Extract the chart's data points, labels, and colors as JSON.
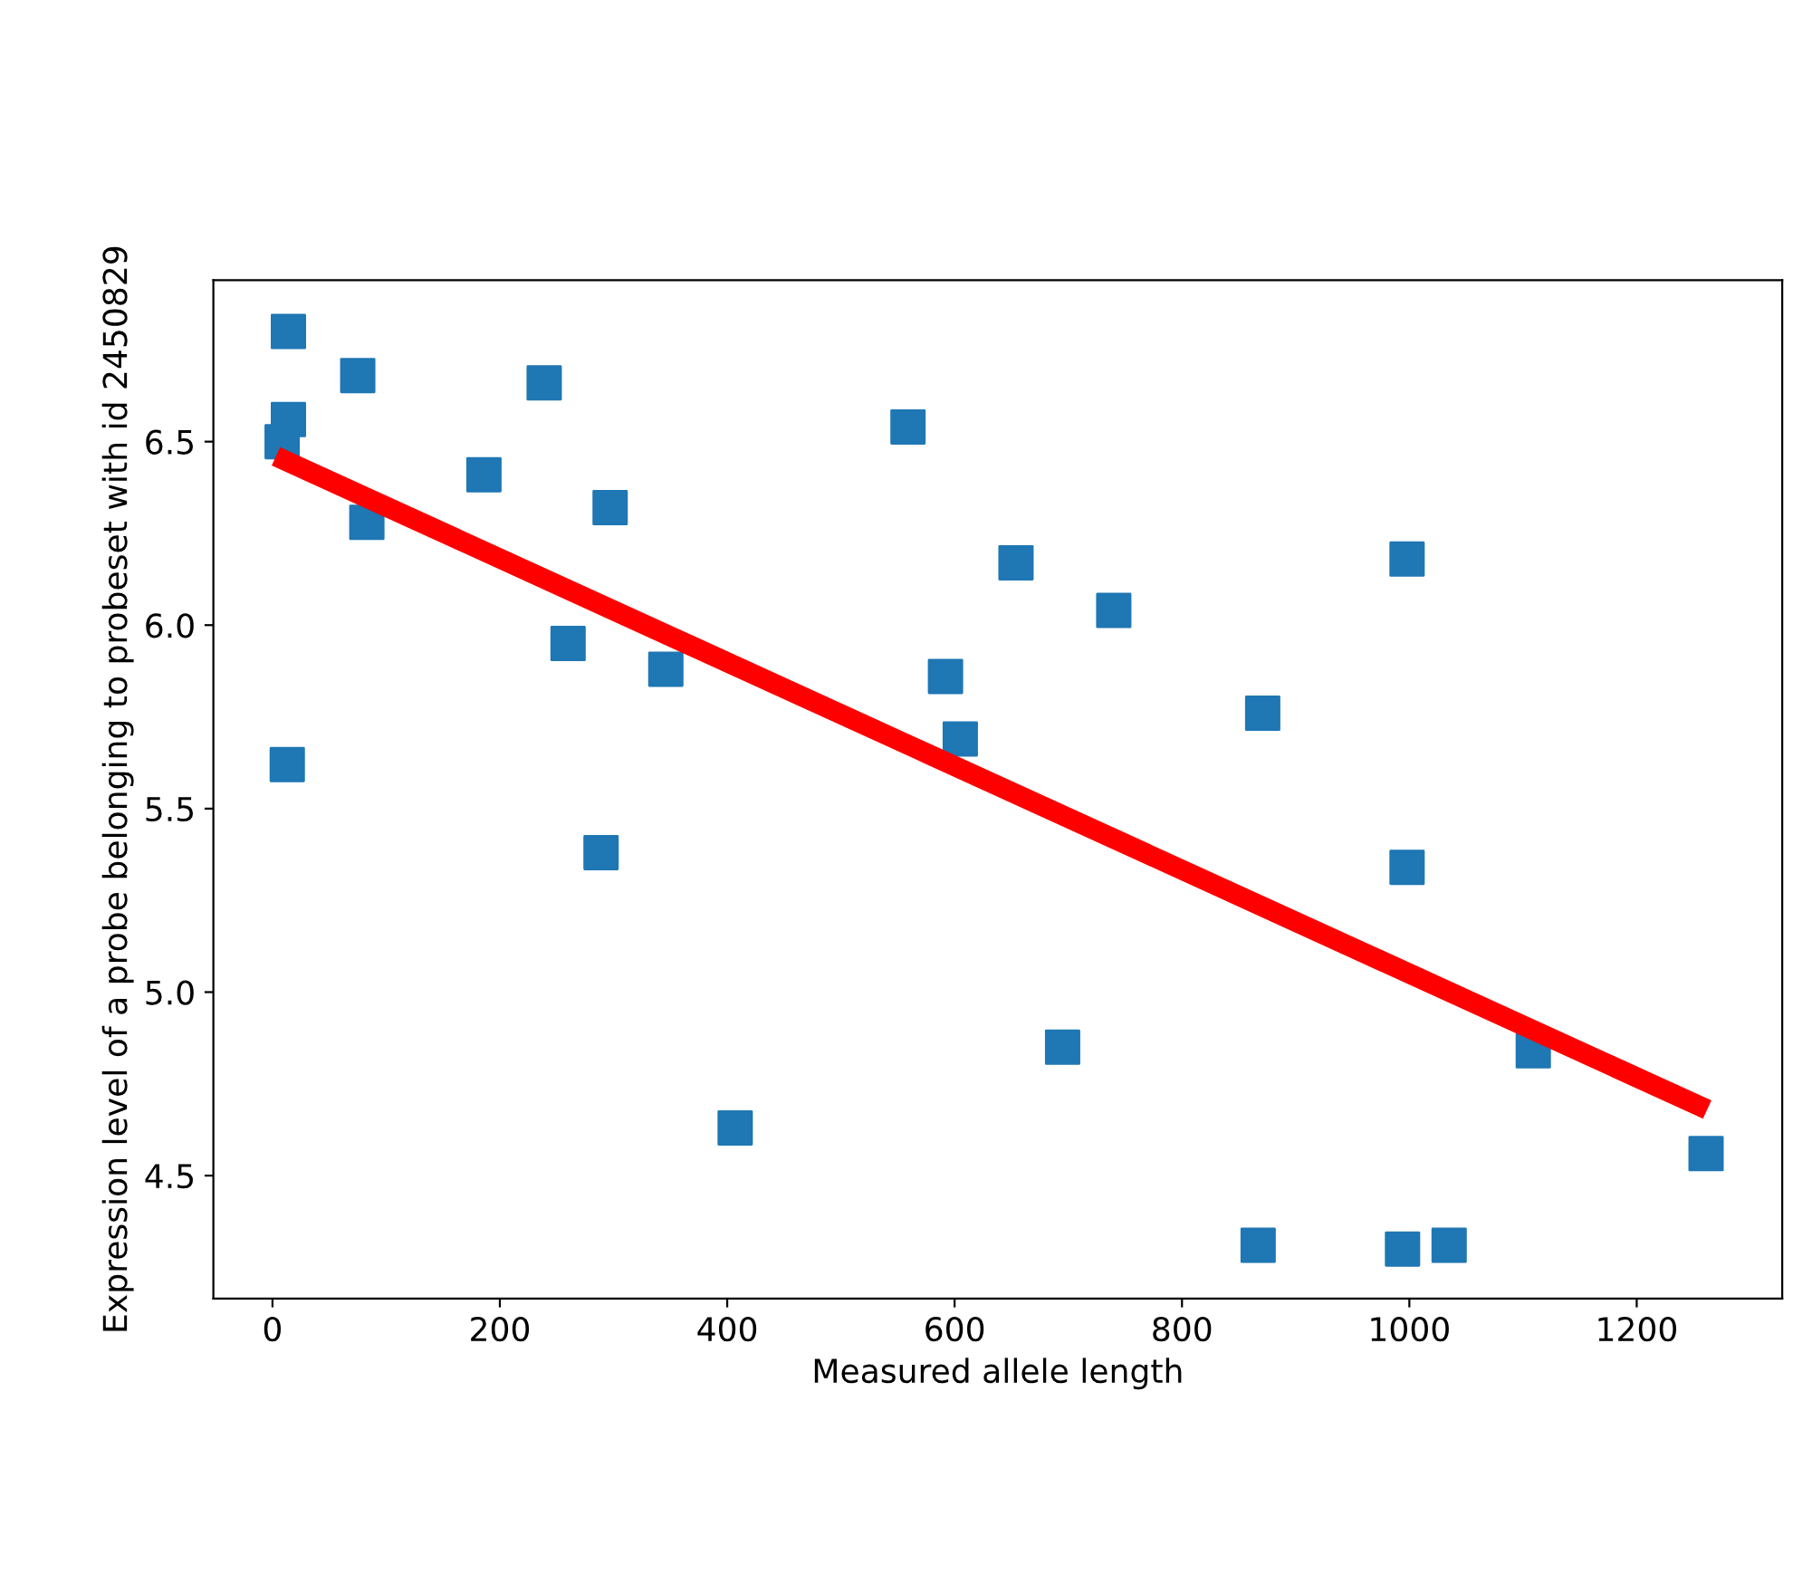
{
  "chart_data": {
    "type": "scatter",
    "xlabel": "Measured allele length",
    "ylabel": "Expression level of a probe belonging to probeset with id 2450829",
    "xlim": [
      -52,
      1328
    ],
    "ylim": [
      4.165,
      6.94
    ],
    "xticks": [
      0,
      200,
      400,
      600,
      800,
      1000,
      1200
    ],
    "yticks": [
      4.5,
      {
        "value": 5,
        "label": "5.0"
      },
      5.5,
      {
        "value": 6,
        "label": "6.0"
      },
      6.5
    ],
    "marker": "square",
    "series": [
      {
        "color": "#1f77b4",
        "x": [
          14,
          75,
          239,
          14,
          8.5,
          559,
          186,
          83,
          297,
          260,
          346,
          13,
          592,
          605,
          654,
          740,
          998,
          871,
          289,
          407,
          998,
          695,
          1109,
          1261,
          867,
          994,
          1035
        ],
        "values": [
          6.8,
          6.68,
          6.66,
          6.56,
          6.5,
          6.54,
          6.41,
          6.28,
          6.32,
          5.95,
          5.88,
          5.62,
          5.86,
          5.69,
          6.17,
          6.04,
          6.18,
          5.76,
          5.38,
          4.63,
          5.34,
          4.85,
          4.84,
          4.56,
          4.31,
          4.3,
          4.31
        ]
      },
      {
        "type": "line",
        "color": "#ff0000",
        "marker": "none",
        "line_style": "solid",
        "x": [
          3,
          1262
        ],
        "values": [
          6.46,
          4.68
        ]
      }
    ]
  }
}
